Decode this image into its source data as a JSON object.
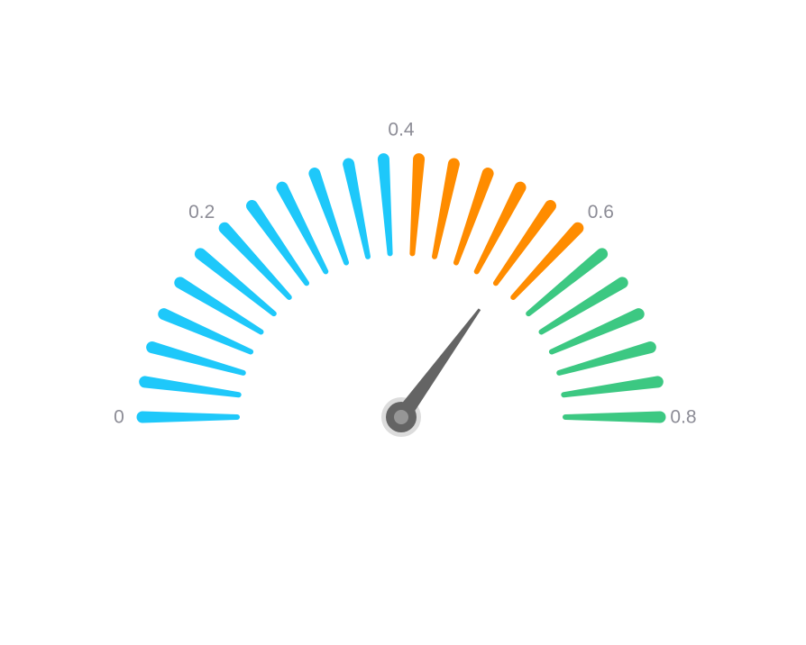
{
  "chart_data": {
    "type": "gauge",
    "min": 0,
    "max": 0.8,
    "value": 0.56,
    "start_angle_deg": 180,
    "end_angle_deg": 0,
    "segment_count": 24,
    "tick_labels": [
      {
        "value": 0,
        "text": "0"
      },
      {
        "value": 0.2,
        "text": "0.2"
      },
      {
        "value": 0.4,
        "text": "0.4"
      },
      {
        "value": 0.6,
        "text": "0.6"
      },
      {
        "value": 0.8,
        "text": "0.8"
      }
    ],
    "color_bands": [
      {
        "from": 0,
        "to": 0.4,
        "color": "#1ec8fa"
      },
      {
        "from": 0.4,
        "to": 0.6,
        "color": "#ff8c00"
      },
      {
        "from": 0.6,
        "to": 0.8,
        "color": "#3cc882"
      }
    ],
    "needle_color": "#646464",
    "pivot_color": "#646464",
    "pivot_halo_color": "#dcdcdc",
    "pivot_center_color": "#969696",
    "label_color": "#8c8c96"
  }
}
